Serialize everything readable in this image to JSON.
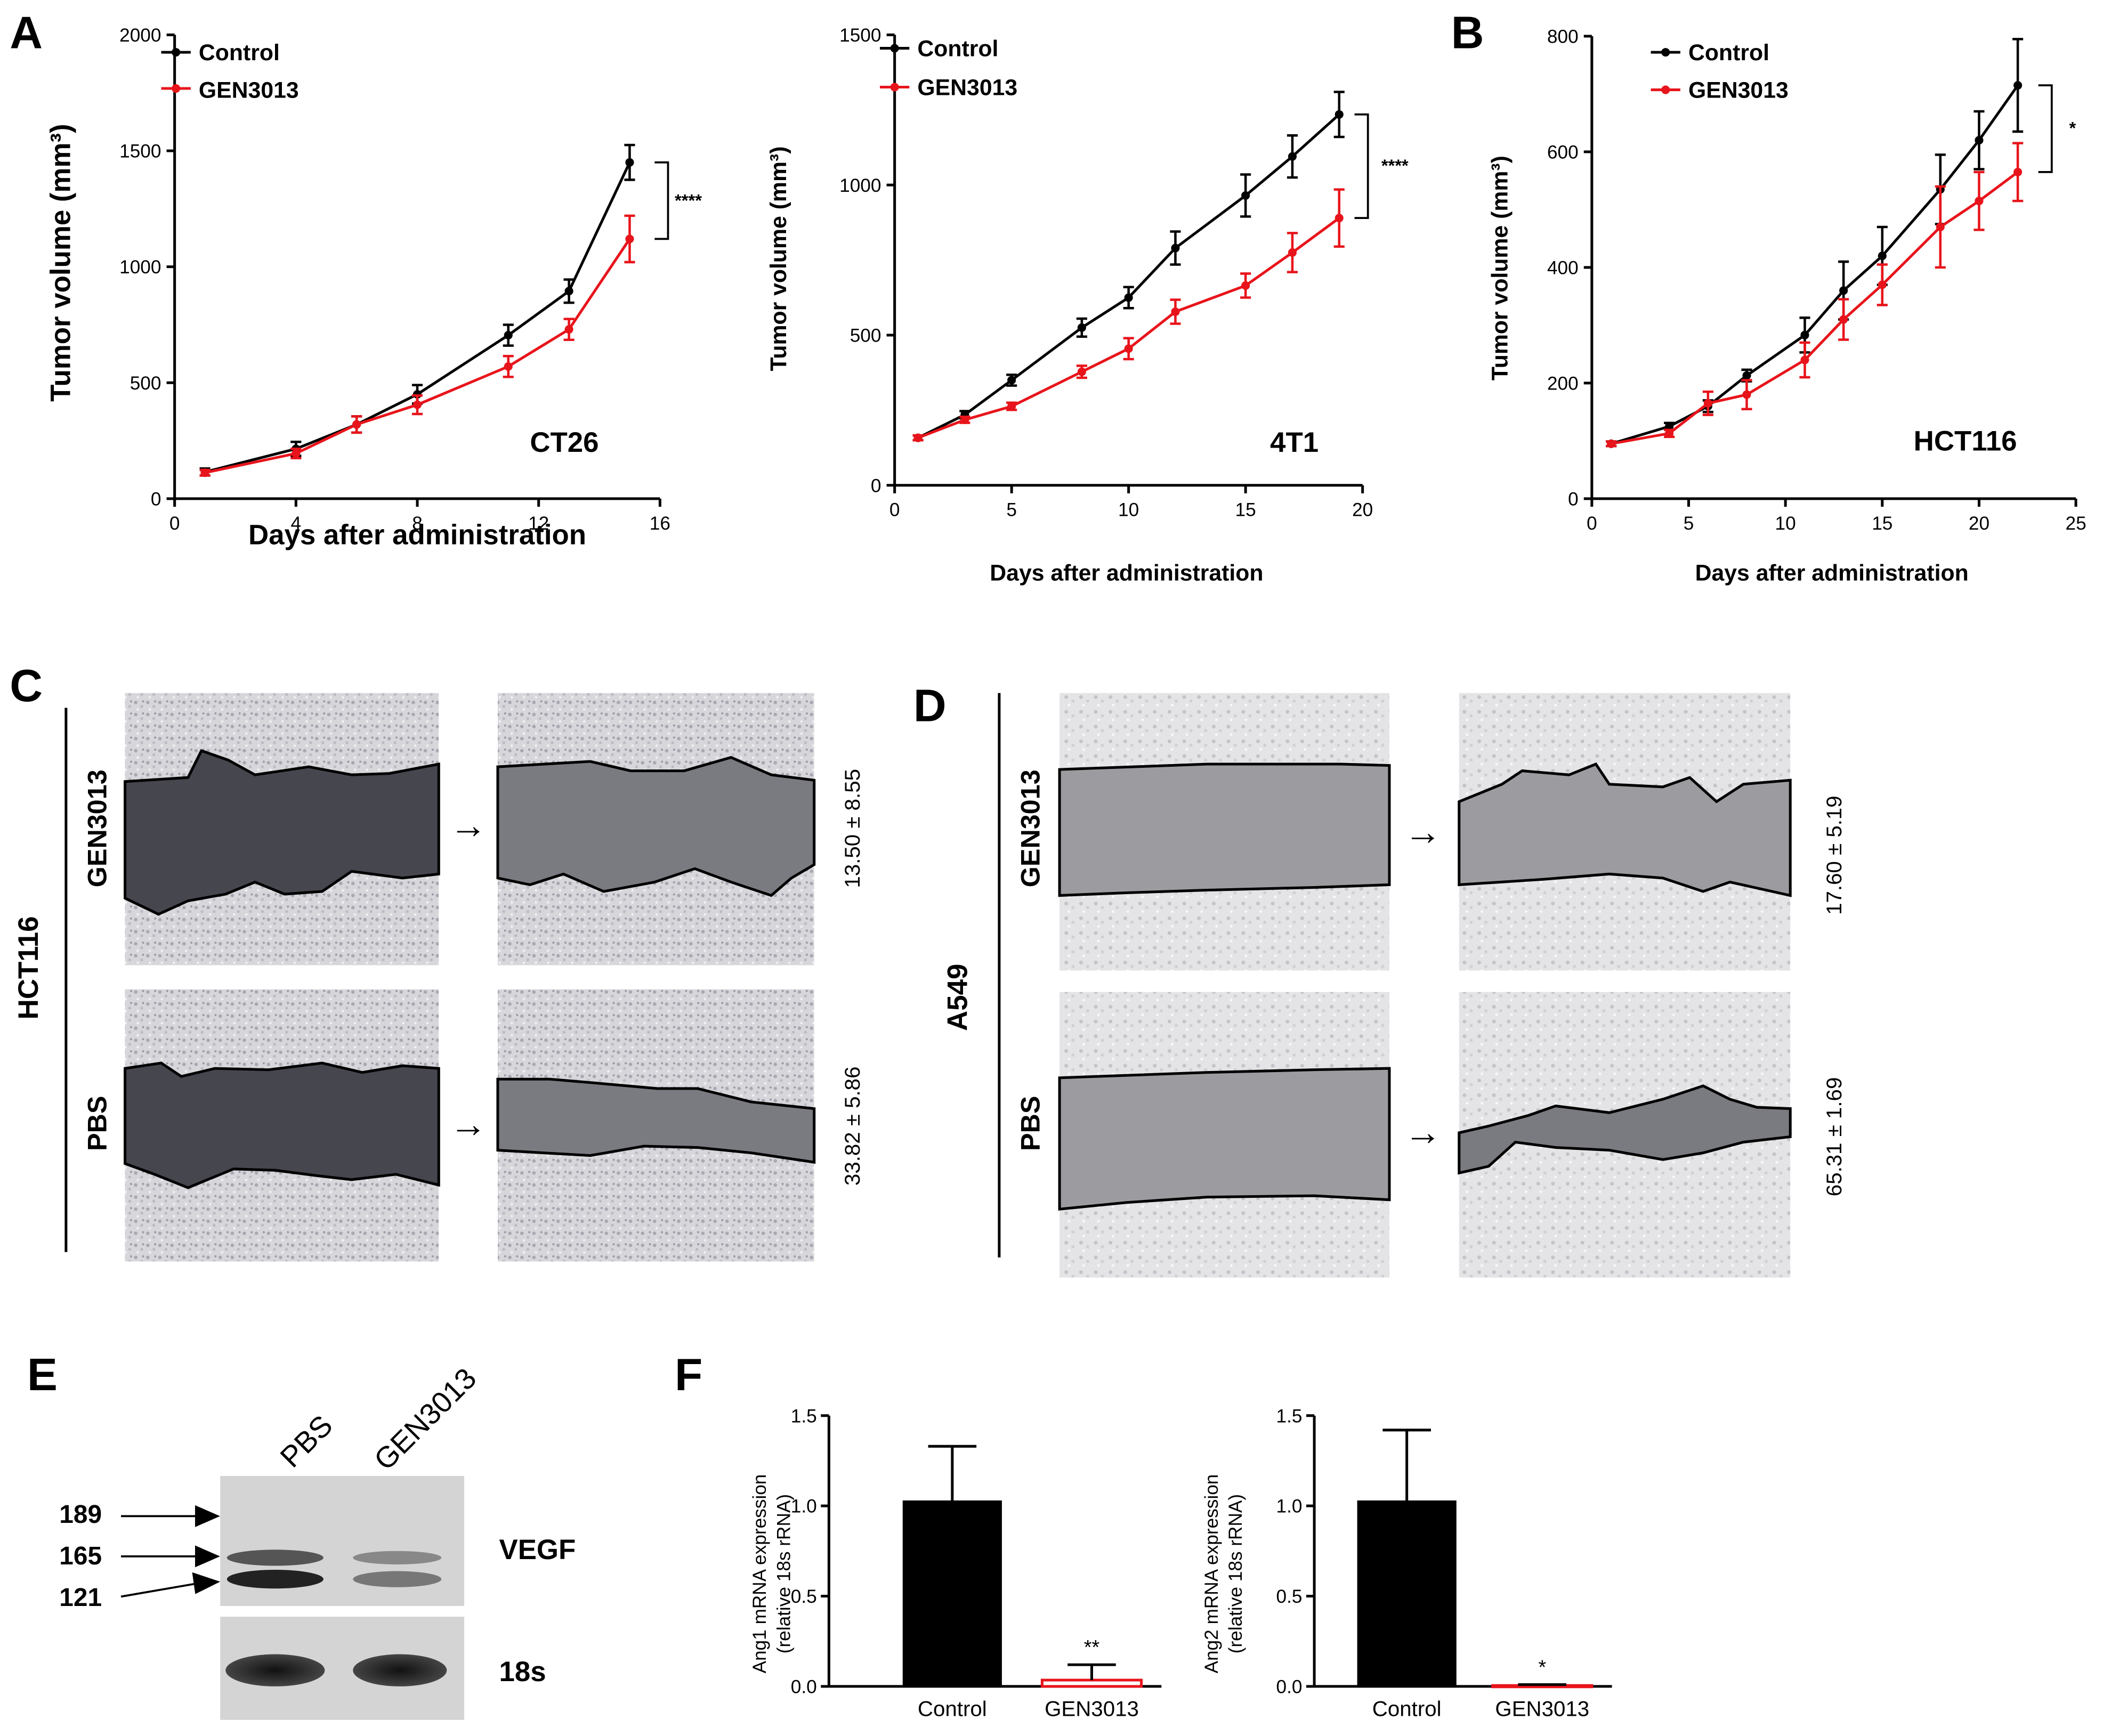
{
  "panel_labels": {
    "A": "A",
    "B": "B",
    "C": "C",
    "D": "D",
    "E": "E",
    "F": "F"
  },
  "colors": {
    "control": "#000000",
    "gen3013": "#e8141b",
    "stain": "#4a4a4a",
    "arrow": "#000000"
  },
  "line_legend": {
    "control": "Control",
    "gen3013": "GEN3013"
  },
  "tumor_ylabel": "Tumor volume (mm³)",
  "chart_data": [
    {
      "type": "line",
      "title": "CT26",
      "xlabel": "Days after administration",
      "ylabel": "Tumor volume (mm³)",
      "xlim": [
        0,
        16
      ],
      "ylim": [
        0,
        2000
      ],
      "xticks": [
        0,
        4,
        8,
        12,
        16
      ],
      "yticks": [
        0,
        500,
        1000,
        1500,
        2000
      ],
      "significance": "****",
      "series": [
        {
          "name": "Control",
          "x": [
            1,
            4,
            6,
            8,
            11,
            13,
            15
          ],
          "y": [
            115,
            215,
            320,
            450,
            705,
            895,
            1450
          ],
          "err": [
            15,
            30,
            35,
            40,
            45,
            50,
            75
          ]
        },
        {
          "name": "GEN3013",
          "x": [
            1,
            4,
            6,
            8,
            11,
            13,
            15
          ],
          "y": [
            112,
            195,
            320,
            405,
            570,
            730,
            1120
          ],
          "err": [
            12,
            20,
            35,
            40,
            45,
            45,
            100
          ]
        }
      ]
    },
    {
      "type": "line",
      "title": "4T1",
      "xlabel": "Days after administration",
      "ylabel": "Tumor volume (mm³)",
      "xlim": [
        0,
        20
      ],
      "ylim": [
        0,
        1500
      ],
      "xticks": [
        0,
        5,
        10,
        15,
        20
      ],
      "yticks": [
        0,
        500,
        1000,
        1500
      ],
      "significance": "****",
      "series": [
        {
          "name": "Control",
          "x": [
            1,
            3,
            5,
            8,
            10,
            12,
            15,
            17,
            19
          ],
          "y": [
            158,
            235,
            350,
            525,
            625,
            790,
            965,
            1095,
            1235
          ],
          "err": [
            8,
            12,
            18,
            30,
            35,
            55,
            70,
            70,
            75
          ]
        },
        {
          "name": "GEN3013",
          "x": [
            1,
            3,
            5,
            8,
            10,
            12,
            15,
            17,
            19
          ],
          "y": [
            158,
            218,
            263,
            378,
            455,
            578,
            665,
            775,
            890
          ],
          "err": [
            8,
            10,
            12,
            20,
            35,
            40,
            40,
            65,
            95
          ]
        }
      ]
    },
    {
      "type": "line",
      "title": "HCT116",
      "xlabel": "Days after administration",
      "ylabel": "Tumor volume (mm³)",
      "xlim": [
        0,
        25
      ],
      "ylim": [
        0,
        800
      ],
      "xticks": [
        0,
        5,
        10,
        15,
        20,
        25
      ],
      "yticks": [
        0,
        200,
        400,
        600,
        800
      ],
      "significance": "*",
      "series": [
        {
          "name": "Control",
          "x": [
            1,
            4,
            6,
            8,
            11,
            13,
            15,
            18,
            20,
            22
          ],
          "y": [
            95,
            125,
            160,
            213,
            283,
            360,
            420,
            535,
            620,
            715
          ],
          "err": [
            4,
            6,
            10,
            10,
            30,
            50,
            50,
            60,
            50,
            80
          ]
        },
        {
          "name": "GEN3013",
          "x": [
            1,
            4,
            6,
            8,
            11,
            13,
            15,
            18,
            20,
            22
          ],
          "y": [
            95,
            113,
            165,
            180,
            240,
            310,
            370,
            470,
            515,
            565
          ],
          "err": [
            4,
            6,
            20,
            25,
            30,
            35,
            35,
            70,
            50,
            50
          ]
        }
      ]
    },
    {
      "type": "bar",
      "title": "",
      "ylabel": "Ang1 mRNA expression (relative 18s rRNA)",
      "ylabel_line1": "Ang1 mRNA expression",
      "ylabel_line2": "(relative 18s rRNA)",
      "categories": [
        "Control",
        "GEN3013"
      ],
      "values": [
        1.03,
        0.035
      ],
      "errors": [
        0.3,
        0.085
      ],
      "ylim": [
        0,
        1.5
      ],
      "yticks": [
        "0.0",
        "0.5",
        "1.0",
        "1.5"
      ],
      "significance": "**"
    },
    {
      "type": "bar",
      "title": "",
      "ylabel": "Ang2 mRNA expression (relative 18s rRNA)",
      "ylabel_line1": "Ang2 mRNA expression",
      "ylabel_line2": "(relative 18s rRNA)",
      "categories": [
        "Control",
        "GEN3013"
      ],
      "values": [
        1.03,
        0.005
      ],
      "errors": [
        0.39,
        0.005
      ],
      "ylim": [
        0,
        1.5
      ],
      "yticks": [
        "0.0",
        "0.5",
        "1.0",
        "1.5"
      ],
      "significance": "*"
    }
  ],
  "wound_c": {
    "cell_line": "HCT116",
    "rows": [
      {
        "label": "GEN3013",
        "value": "13.50 ± 8.55"
      },
      {
        "label": "PBS",
        "value": "33.82 ± 5.86"
      }
    ]
  },
  "wound_d": {
    "cell_line": "A549",
    "rows": [
      {
        "label": "GEN3013",
        "value": "17.60 ± 5.19"
      },
      {
        "label": "PBS",
        "value": "65.31 ± 1.69"
      }
    ]
  },
  "gel": {
    "lanes": [
      "PBS",
      "GEN3013"
    ],
    "markers": [
      "189",
      "165",
      "121"
    ],
    "genes": [
      "VEGF",
      "18s"
    ]
  }
}
